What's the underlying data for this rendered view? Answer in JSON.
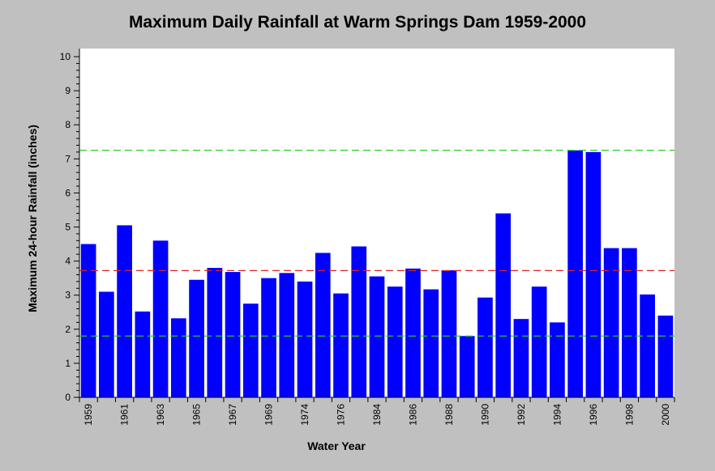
{
  "chart_data": {
    "type": "bar",
    "title": "Maximum Daily Rainfall at Warm Springs Dam 1959-2000",
    "xlabel": "Water Year",
    "ylabel": "Maximum 24-hour Rainfall (inches)",
    "ylim": [
      0,
      10
    ],
    "yticks": [
      "0",
      "1",
      "2",
      "3",
      "4",
      "5",
      "6",
      "7",
      "8",
      "9",
      "10"
    ],
    "categories": [
      "1959",
      "1960",
      "1961",
      "1962",
      "1963",
      "1964",
      "1965",
      "1966",
      "1967",
      "1968",
      "1969",
      "1970",
      "1974",
      "1975",
      "1976",
      "1977",
      "1984",
      "1985",
      "1986",
      "1987",
      "1988",
      "1989",
      "1990",
      "1991",
      "1992",
      "1993",
      "1994",
      "1995",
      "1996",
      "1997",
      "1998",
      "1999",
      "2000"
    ],
    "tick_labels": [
      "1959",
      "",
      "1961",
      "",
      "1963",
      "",
      "1965",
      "",
      "1967",
      "",
      "1969",
      "",
      "1974",
      "",
      "1976",
      "",
      "1984",
      "",
      "1986",
      "",
      "1988",
      "",
      "1990",
      "",
      "1992",
      "",
      "1994",
      "",
      "1996",
      "",
      "1998",
      "",
      "2000"
    ],
    "values": [
      4.5,
      3.1,
      5.05,
      2.52,
      4.6,
      2.32,
      3.45,
      3.8,
      3.68,
      2.75,
      3.5,
      3.65,
      3.4,
      4.24,
      3.05,
      4.43,
      3.55,
      3.25,
      3.78,
      3.17,
      3.73,
      1.8,
      2.93,
      5.4,
      2.3,
      3.25,
      2.2,
      7.25,
      7.2,
      4.38,
      4.38,
      3.02,
      2.4
    ],
    "reference_lines": [
      {
        "value": 7.25,
        "color": "#22cc22"
      },
      {
        "value": 3.72,
        "color": "#dd2222"
      },
      {
        "value": 1.8,
        "color": "#22cc22"
      }
    ],
    "bar_color": "#0000ff",
    "plot_background": "#ffffff",
    "page_background": "#c0c0c0",
    "grid": false,
    "legend": "none"
  }
}
